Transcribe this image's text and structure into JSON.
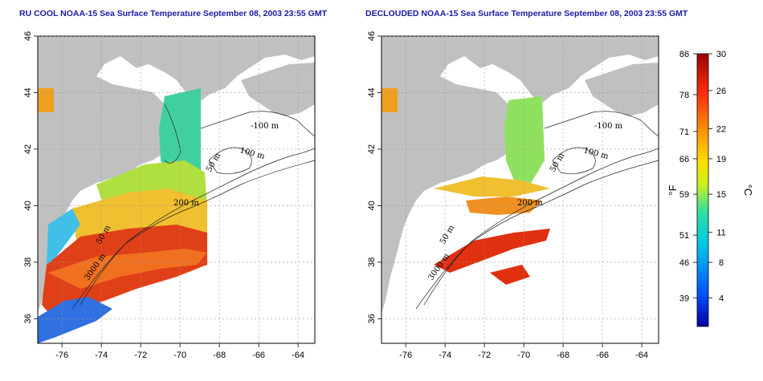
{
  "left_panel": {
    "title": "RU COOL NOAA-15 Sea Surface Temperature September 08, 2003 23:55 GMT"
  },
  "right_panel": {
    "title": "DECLOUDED NOAA-15 Sea Surface Temperature September 08, 2003 23:55 GMT"
  },
  "axes": {
    "x_ticks": [
      "-76",
      "-74",
      "-72",
      "-70",
      "-68",
      "-66",
      "-64"
    ],
    "y_ticks": [
      "46",
      "44",
      "42",
      "40",
      "38",
      "36"
    ]
  },
  "contour_labels": [
    "-100 m",
    "100 m",
    "50 m",
    "200 m",
    "50 m",
    "3000 m"
  ],
  "colorbar": {
    "fahrenheit_unit": "°F",
    "celsius_unit": "°C",
    "fahrenheit_ticks": [
      "86",
      "78",
      "71",
      "66",
      "59",
      "51",
      "46",
      "39"
    ],
    "celsius_ticks": [
      "30",
      "26",
      "22",
      "19",
      "15",
      "11",
      "8",
      "4"
    ]
  },
  "colors": {
    "land": "#c0c0c0",
    "title": "#1a1aa6",
    "warm": "#e03010",
    "cool": "#2060e0"
  }
}
